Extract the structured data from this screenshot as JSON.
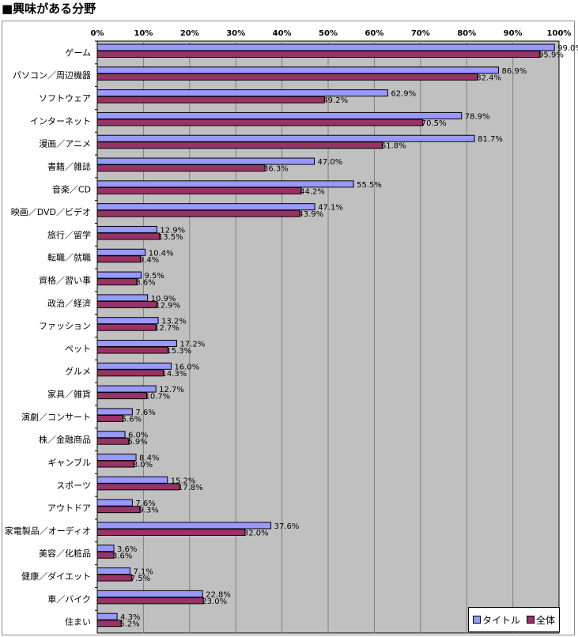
{
  "title": "■興味がある分野",
  "chart_data": {
    "type": "bar",
    "orientation": "horizontal",
    "title": "■興味がある分野",
    "xlim": [
      0,
      100
    ],
    "x_ticks": [
      "0%",
      "10%",
      "20%",
      "30%",
      "40%",
      "50%",
      "60%",
      "70%",
      "80%",
      "90%",
      "100%"
    ],
    "grid": true,
    "legend_placement": "bottom-right",
    "categories": [
      "ゲーム",
      "パソコン／周辺機器",
      "ソフトウェア",
      "インターネット",
      "漫画／アニメ",
      "書籍／雑誌",
      "音楽／CD",
      "映画／DVD／ビデオ",
      "旅行／留学",
      "転職／就職",
      "資格／習い事",
      "政治／経済",
      "ファッション",
      "ペット",
      "グルメ",
      "家具／雑貨",
      "演劇／コンサート",
      "株／金融商品",
      "ギャンブル",
      "スポーツ",
      "アウトドア",
      "家電製品／オーディオ",
      "美容／化粧品",
      "健康／ダイエット",
      "車／バイク",
      "住まい"
    ],
    "series": [
      {
        "name": "タイトル",
        "color": "#9999ff",
        "values": [
          99.0,
          86.9,
          62.9,
          78.9,
          81.7,
          47.0,
          55.5,
          47.1,
          12.9,
          10.4,
          9.5,
          10.9,
          13.2,
          17.2,
          16.0,
          12.7,
          7.6,
          6.0,
          8.4,
          15.2,
          7.6,
          37.6,
          3.6,
          7.1,
          22.8,
          4.3
        ]
      },
      {
        "name": "全体",
        "color": "#993366",
        "values": [
          95.9,
          82.4,
          49.2,
          70.5,
          61.8,
          36.3,
          44.2,
          43.9,
          13.5,
          9.4,
          8.6,
          12.9,
          12.7,
          15.3,
          14.3,
          10.7,
          5.6,
          6.9,
          8.0,
          17.8,
          9.3,
          32.0,
          3.6,
          7.5,
          23.0,
          5.2
        ]
      }
    ],
    "plot_background": "#c0c0c0"
  }
}
